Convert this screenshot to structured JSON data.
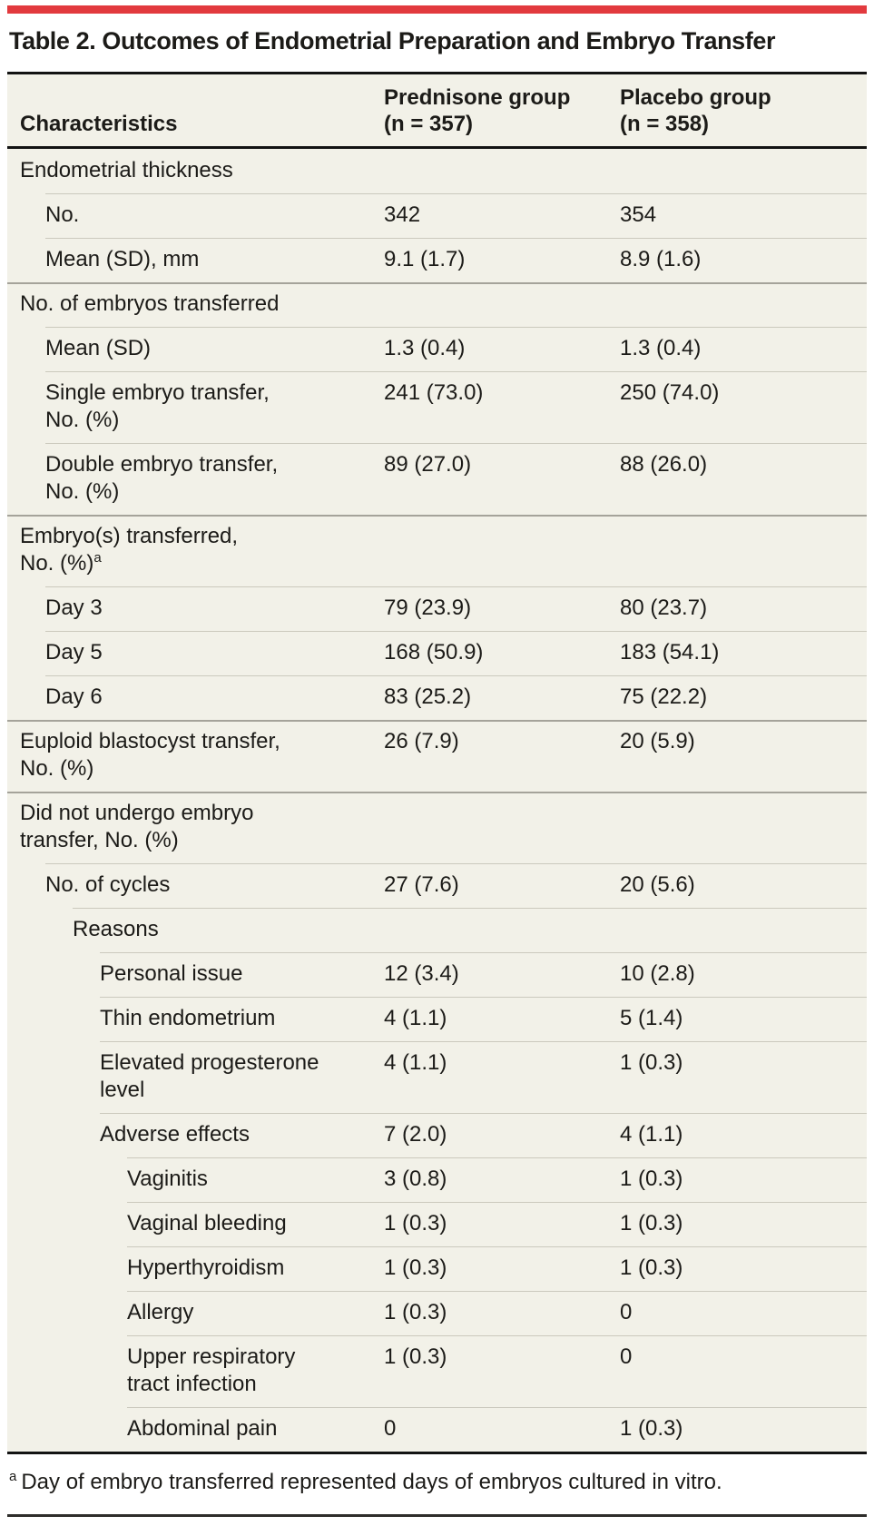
{
  "accent_color": "#e23a3e",
  "table_bg_color": "#f2f1e8",
  "title": "Table 2. Outcomes of Endometrial Preparation and Embryo Transfer",
  "header": {
    "characteristics": "Characteristics",
    "col1": "Prednisone group\n(n = 357)",
    "col2": "Placebo group\n(n = 358)"
  },
  "rows": [
    {
      "label": "Endometrial thickness",
      "level": 0,
      "section": true,
      "v1": "",
      "v2": ""
    },
    {
      "label": "No.",
      "level": 1,
      "section": false,
      "v1": "342",
      "v2": "354"
    },
    {
      "label": "Mean (SD), mm",
      "level": 1,
      "section": false,
      "v1": "9.1 (1.7)",
      "v2": "8.9 (1.6)"
    },
    {
      "label": "No. of embryos transferred",
      "level": 0,
      "section": true,
      "v1": "",
      "v2": ""
    },
    {
      "label": "Mean (SD)",
      "level": 1,
      "section": false,
      "v1": "1.3 (0.4)",
      "v2": "1.3 (0.4)"
    },
    {
      "label": "Single embryo transfer,\nNo. (%)",
      "level": 1,
      "section": false,
      "v1": "241 (73.0)",
      "v2": "250 (74.0)"
    },
    {
      "label": "Double embryo transfer,\nNo. (%)",
      "level": 1,
      "section": false,
      "v1": "89 (27.0)",
      "v2": "88 (26.0)"
    },
    {
      "label": "Embryo(s) transferred,\nNo. (%)",
      "sup": "a",
      "level": 0,
      "section": true,
      "v1": "",
      "v2": ""
    },
    {
      "label": "Day 3",
      "level": 1,
      "section": false,
      "v1": "79 (23.9)",
      "v2": "80 (23.7)"
    },
    {
      "label": "Day 5",
      "level": 1,
      "section": false,
      "v1": "168 (50.9)",
      "v2": "183 (54.1)"
    },
    {
      "label": "Day 6",
      "level": 1,
      "section": false,
      "v1": "83 (25.2)",
      "v2": "75 (22.2)"
    },
    {
      "label": "Euploid blastocyst transfer,\nNo. (%)",
      "level": 0,
      "section": true,
      "v1": "26 (7.9)",
      "v2": "20 (5.9)"
    },
    {
      "label": "Did not undergo embryo\ntransfer, No. (%)",
      "level": 0,
      "section": true,
      "v1": "",
      "v2": ""
    },
    {
      "label": "No. of cycles",
      "level": 1,
      "section": false,
      "v1": "27 (7.6)",
      "v2": "20 (5.6)"
    },
    {
      "label": "Reasons",
      "level": 2,
      "section": false,
      "v1": "",
      "v2": ""
    },
    {
      "label": "Personal issue",
      "level": 3,
      "section": false,
      "v1": "12 (3.4)",
      "v2": "10 (2.8)"
    },
    {
      "label": "Thin endometrium",
      "level": 3,
      "section": false,
      "v1": "4 (1.1)",
      "v2": "5 (1.4)"
    },
    {
      "label": "Elevated progesterone\nlevel",
      "level": 3,
      "section": false,
      "v1": "4 (1.1)",
      "v2": "1 (0.3)"
    },
    {
      "label": "Adverse effects",
      "level": 3,
      "section": false,
      "v1": "7 (2.0)",
      "v2": "4 (1.1)"
    },
    {
      "label": "Vaginitis",
      "level": 4,
      "section": false,
      "v1": "3 (0.8)",
      "v2": "1 (0.3)"
    },
    {
      "label": "Vaginal bleeding",
      "level": 4,
      "section": false,
      "v1": "1 (0.3)",
      "v2": "1 (0.3)"
    },
    {
      "label": "Hyperthyroidism",
      "level": 4,
      "section": false,
      "v1": "1 (0.3)",
      "v2": "1 (0.3)"
    },
    {
      "label": "Allergy",
      "level": 4,
      "section": false,
      "v1": "1 (0.3)",
      "v2": "0"
    },
    {
      "label": "Upper respiratory\ntract infection",
      "level": 4,
      "section": false,
      "v1": "1 (0.3)",
      "v2": "0"
    },
    {
      "label": "Abdominal pain",
      "level": 4,
      "section": false,
      "v1": "0",
      "v2": "1 (0.3)"
    }
  ],
  "footnote": {
    "marker": "a",
    "text": "Day of embryo transferred represented days of embryos cultured in vitro."
  }
}
